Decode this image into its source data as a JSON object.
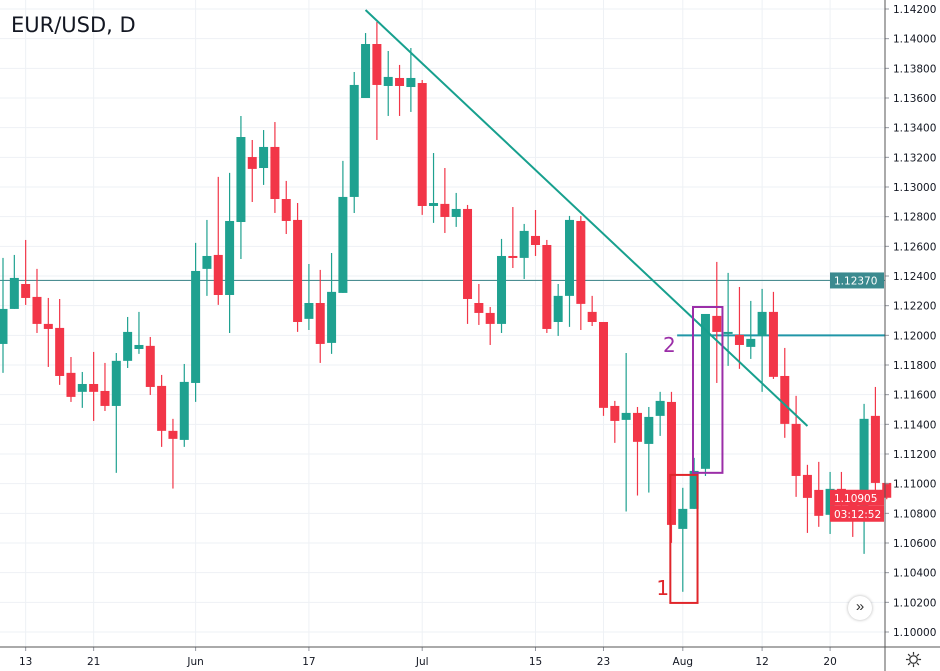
{
  "header": {
    "symbol_title": "EUR/USD, D"
  },
  "colors": {
    "up": "#1fa190",
    "down": "#f23648",
    "trendline": "#17a08e",
    "hline_main": "#4c8e92",
    "hline_level": "#2196a8",
    "box_2": "#9b2ea8",
    "box_1": "#e0262b",
    "grid": "#eef1f5",
    "axis": "#9598a1"
  },
  "labels": {
    "box_1": "1",
    "box_2": "2"
  },
  "price_badges": {
    "level": "1.12370",
    "last": "1.10905",
    "countdown": "03:12:52"
  },
  "controls": {
    "scroll_right": "»"
  },
  "icons": {
    "settings": "gear-icon",
    "scroll": "double-chevron-right-icon"
  },
  "chart_data": {
    "type": "candlestick",
    "title": "EUR/USD, D",
    "ylim": [
      1.1,
      1.142
    ],
    "grid": true,
    "y_ticks": [
      "1.14200",
      "1.14000",
      "1.13800",
      "1.13600",
      "1.13400",
      "1.13200",
      "1.13000",
      "1.12800",
      "1.12600",
      "1.12400",
      "1.12200",
      "1.12000",
      "1.11800",
      "1.11600",
      "1.11400",
      "1.11200",
      "1.11000",
      "1.10800",
      "1.10600",
      "1.10400",
      "1.10200",
      "1.10000"
    ],
    "x_ticks": [
      {
        "label": "13",
        "index": 2
      },
      {
        "label": "21",
        "index": 8
      },
      {
        "label": "Jun",
        "index": 17
      },
      {
        "label": "17",
        "index": 27
      },
      {
        "label": "Jul",
        "index": 37
      },
      {
        "label": "15",
        "index": 47
      },
      {
        "label": "23",
        "index": 53
      },
      {
        "label": "Aug",
        "index": 60
      },
      {
        "label": "12",
        "index": 67
      },
      {
        "label": "20",
        "index": 73
      }
    ],
    "candles_ohlc": [
      [
        1.11942,
        1.12522,
        1.11747,
        1.12178
      ],
      [
        1.12178,
        1.12542,
        1.12178,
        1.12387
      ],
      [
        1.12346,
        1.12643,
        1.12205,
        1.12252
      ],
      [
        1.12259,
        1.12448,
        1.12016,
        1.12077
      ],
      [
        1.12077,
        1.12252,
        1.11787,
        1.12043
      ],
      [
        1.1205,
        1.12245,
        1.11666,
        1.11726
      ],
      [
        1.11747,
        1.11854,
        1.11551,
        1.11585
      ],
      [
        1.11619,
        1.11753,
        1.11511,
        1.11672
      ],
      [
        1.11672,
        1.11888,
        1.11423,
        1.11619
      ],
      [
        1.11625,
        1.11814,
        1.1149,
        1.11524
      ],
      [
        1.11524,
        1.11881,
        1.11073,
        1.11828
      ],
      [
        1.11828,
        1.12124,
        1.1178,
        1.12023
      ],
      [
        1.11908,
        1.12158,
        1.11875,
        1.11935
      ],
      [
        1.11929,
        1.11989,
        1.11598,
        1.11652
      ],
      [
        1.11659,
        1.11733,
        1.11248,
        1.11356
      ],
      [
        1.11356,
        1.11437,
        1.10967,
        1.11302
      ],
      [
        1.11295,
        1.11807,
        1.11248,
        1.11686
      ],
      [
        1.11679,
        1.12623,
        1.11551,
        1.12434
      ],
      [
        1.12448,
        1.12778,
        1.12266,
        1.12535
      ],
      [
        1.12542,
        1.13068,
        1.12205,
        1.12272
      ],
      [
        1.12272,
        1.13095,
        1.12016,
        1.12771
      ],
      [
        1.12764,
        1.13479,
        1.12515,
        1.13337
      ],
      [
        1.13202,
        1.13317,
        1.12899,
        1.13122
      ],
      [
        1.13128,
        1.13384,
        1.13014,
        1.1327
      ],
      [
        1.1327,
        1.13438,
        1.12825,
        1.12919
      ],
      [
        1.12919,
        1.13041,
        1.12683,
        1.12771
      ],
      [
        1.12778,
        1.12892,
        1.12023,
        1.1209
      ],
      [
        1.12111,
        1.12481,
        1.12036,
        1.12218
      ],
      [
        1.12218,
        1.12441,
        1.11814,
        1.11942
      ],
      [
        1.11949,
        1.12555,
        1.11875,
        1.12293
      ],
      [
        1.12286,
        1.13176,
        1.12286,
        1.12933
      ],
      [
        1.12933,
        1.13775,
        1.12825,
        1.13688
      ],
      [
        1.136,
        1.14038,
        1.136,
        1.13964
      ],
      [
        1.13964,
        1.14112,
        1.13317,
        1.13688
      ],
      [
        1.13681,
        1.13917,
        1.13479,
        1.13742
      ],
      [
        1.13735,
        1.13823,
        1.13479,
        1.13681
      ],
      [
        1.13674,
        1.13937,
        1.13506,
        1.13735
      ],
      [
        1.13701,
        1.13721,
        1.12812,
        1.12872
      ],
      [
        1.12872,
        1.13229,
        1.12758,
        1.12892
      ],
      [
        1.12886,
        1.13128,
        1.1269,
        1.12798
      ],
      [
        1.12798,
        1.1296,
        1.12731,
        1.12852
      ],
      [
        1.12852,
        1.12879,
        1.12077,
        1.12245
      ],
      [
        1.12218,
        1.12346,
        1.1207,
        1.12151
      ],
      [
        1.12151,
        1.12191,
        1.11935,
        1.12077
      ],
      [
        1.12077,
        1.1265,
        1.12016,
        1.12535
      ],
      [
        1.12535,
        1.12865,
        1.12454,
        1.12528
      ],
      [
        1.12522,
        1.12751,
        1.1238,
        1.12704
      ],
      [
        1.1267,
        1.12845,
        1.12535,
        1.12609
      ],
      [
        1.12609,
        1.12643,
        1.12016,
        1.12043
      ],
      [
        1.1209,
        1.12346,
        1.11996,
        1.12266
      ],
      [
        1.12266,
        1.12805,
        1.12057,
        1.12778
      ],
      [
        1.12771,
        1.12805,
        1.12036,
        1.12212
      ],
      [
        1.12158,
        1.12266,
        1.12063,
        1.1209
      ],
      [
        1.1209,
        1.1209,
        1.11457,
        1.11511
      ],
      [
        1.11524,
        1.11558,
        1.11275,
        1.11423
      ],
      [
        1.1143,
        1.11881,
        1.10812,
        1.11477
      ],
      [
        1.11477,
        1.11517,
        1.1092,
        1.11282
      ],
      [
        1.11268,
        1.11517,
        1.1094,
        1.1145
      ],
      [
        1.11457,
        1.11619,
        1.11322,
        1.11558
      ],
      [
        1.11551,
        1.11619,
        1.10601,
        1.10722
      ],
      [
        1.10695,
        1.10972,
        1.10271,
        1.1083
      ],
      [
        1.1083,
        1.11174,
        1.1083,
        1.11086
      ],
      [
        1.111,
        1.12144,
        1.11052,
        1.12144
      ],
      [
        1.12131,
        1.12495,
        1.11679,
        1.12023
      ],
      [
        1.1201,
        1.12421,
        1.11794,
        1.12023
      ],
      [
        1.12003,
        1.12326,
        1.11774,
        1.11935
      ],
      [
        1.11922,
        1.12232,
        1.11841,
        1.11976
      ],
      [
        1.11996,
        1.12313,
        1.11619,
        1.12158
      ],
      [
        1.12158,
        1.12293,
        1.11706,
        1.1172
      ],
      [
        1.11726,
        1.11915,
        1.11309,
        1.11403
      ],
      [
        1.11403,
        1.11592,
        1.10911,
        1.11052
      ],
      [
        1.11059,
        1.11127,
        1.10668,
        1.10904
      ],
      [
        1.10958,
        1.11147,
        1.10709,
        1.10783
      ],
      [
        1.1079,
        1.11079,
        1.10661,
        1.10965
      ],
      [
        1.10965,
        1.11079,
        1.10803,
        1.10884
      ],
      [
        1.10877,
        1.1094,
        1.10641,
        1.10803
      ],
      [
        1.1081,
        1.11538,
        1.10527,
        1.11437
      ],
      [
        1.11457,
        1.11652,
        1.10951,
        1.11005
      ],
      [
        1.11005,
        1.11005,
        1.10895,
        1.10905
      ]
    ],
    "horizontal_lines": [
      {
        "name": "resistance-level",
        "price": 1.1237,
        "from_index": null
      },
      {
        "name": "breakout-level",
        "price": 1.12,
        "from_index": 59.5
      }
    ],
    "trendline": {
      "from": {
        "index": 32.0,
        "price": 1.14193
      },
      "to": {
        "index": 71.0,
        "price": 1.11389
      }
    },
    "boxes": [
      {
        "label": "1",
        "from_index": 58.9,
        "to_index": 61.3,
        "top": 1.11059,
        "bottom": 1.10196
      },
      {
        "label": "2",
        "from_index": 60.9,
        "to_index": 63.5,
        "top": 1.12191,
        "bottom": 1.11073
      }
    ],
    "last_price": 1.10905
  }
}
